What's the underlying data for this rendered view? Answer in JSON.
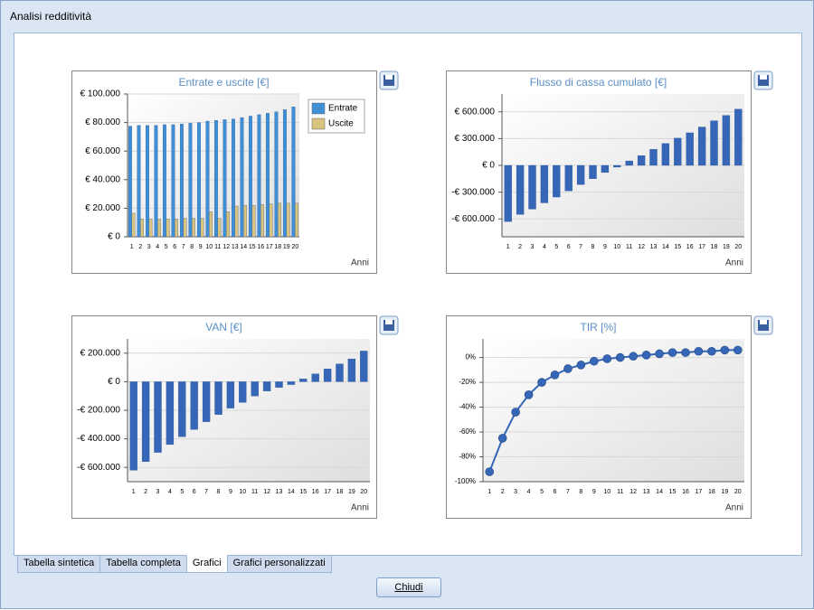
{
  "window": {
    "title": "Analisi redditività"
  },
  "tabs": [
    "Tabella sintetica",
    "Tabella completa",
    "Grafici",
    "Grafici personalizzati"
  ],
  "active_tab": 2,
  "button": "Chiudi",
  "chart_data": [
    {
      "type": "bar",
      "title": "Entrate e uscite [€]",
      "x_label": "Anni",
      "categories": [
        "1",
        "2",
        "3",
        "4",
        "5",
        "6",
        "7",
        "8",
        "9",
        "10",
        "11",
        "12",
        "13",
        "14",
        "15",
        "16",
        "17",
        "18",
        "19",
        "20"
      ],
      "series": [
        {
          "name": "Entrate",
          "color": "#3f8fd6",
          "values": [
            77500,
            78000,
            78000,
            78000,
            78500,
            78500,
            79000,
            79500,
            80000,
            81000,
            81500,
            82000,
            82500,
            83500,
            84500,
            85500,
            86500,
            87500,
            89000,
            91000
          ]
        },
        {
          "name": "Uscite",
          "color": "#d9c47e",
          "values": [
            16500,
            12500,
            12500,
            12500,
            12500,
            12500,
            13000,
            13000,
            13000,
            17500,
            13000,
            17500,
            21500,
            22000,
            22000,
            22500,
            23000,
            23500,
            23500,
            23500
          ]
        }
      ],
      "ylim": [
        0,
        100000
      ],
      "yticks": [
        {
          "value": 0,
          "label": "€ 0"
        },
        {
          "value": 20000,
          "label": "€ 20.000"
        },
        {
          "value": 40000,
          "label": "€ 40.000"
        },
        {
          "value": 60000,
          "label": "€ 60.000"
        },
        {
          "value": 80000,
          "label": "€ 80.000"
        },
        {
          "value": 100000,
          "label": "€ 100.000"
        }
      ],
      "grid": true,
      "legend": "top-right"
    },
    {
      "type": "bar",
      "title": "Flusso di cassa cumulato [€]",
      "x_label": "Anni",
      "categories": [
        "1",
        "2",
        "3",
        "4",
        "5",
        "6",
        "7",
        "8",
        "9",
        "10",
        "11",
        "12",
        "13",
        "14",
        "15",
        "16",
        "17",
        "18",
        "19",
        "20"
      ],
      "values": [
        -630000,
        -550000,
        -490000,
        -420000,
        -355000,
        -285000,
        -215000,
        -150000,
        -80000,
        -20000,
        50000,
        110000,
        180000,
        245000,
        305000,
        365000,
        430000,
        500000,
        560000,
        630000
      ],
      "color": "#3566b8",
      "ylim": [
        -800000,
        800000
      ],
      "yticks": [
        {
          "value": -600000,
          "label": "-€ 600.000"
        },
        {
          "value": -300000,
          "label": "-€ 300.000"
        },
        {
          "value": 0,
          "label": "€ 0"
        },
        {
          "value": 300000,
          "label": "€ 300.000"
        },
        {
          "value": 600000,
          "label": "€ 600.000"
        }
      ],
      "grid": true
    },
    {
      "type": "bar",
      "title": "VAN [€]",
      "x_label": "Anni",
      "categories": [
        "1",
        "2",
        "3",
        "4",
        "5",
        "6",
        "7",
        "8",
        "9",
        "10",
        "11",
        "12",
        "13",
        "14",
        "15",
        "16",
        "17",
        "18",
        "19",
        "20"
      ],
      "values": [
        -620000,
        -560000,
        -495000,
        -440000,
        -385000,
        -335000,
        -280000,
        -230000,
        -185000,
        -145000,
        -100000,
        -65000,
        -40000,
        -20000,
        20000,
        55000,
        90000,
        125000,
        160000,
        215000
      ],
      "color": "#3566b8",
      "ylim": [
        -700000,
        300000
      ],
      "yticks": [
        {
          "value": -600000,
          "label": "-€ 600.000"
        },
        {
          "value": -400000,
          "label": "-€ 400.000"
        },
        {
          "value": -200000,
          "label": "-€ 200.000"
        },
        {
          "value": 0,
          "label": "€ 0"
        },
        {
          "value": 200000,
          "label": "€ 200.000"
        }
      ],
      "grid": true
    },
    {
      "type": "line",
      "title": "TIR [%]",
      "x_label": "Anni",
      "categories": [
        "1",
        "2",
        "3",
        "4",
        "5",
        "6",
        "7",
        "8",
        "9",
        "10",
        "11",
        "12",
        "13",
        "14",
        "15",
        "16",
        "17",
        "18",
        "19",
        "20"
      ],
      "values": [
        -92,
        -65,
        -44,
        -30,
        -20,
        -14,
        -9,
        -6,
        -3,
        -1,
        0,
        1,
        2,
        3,
        4,
        4,
        5,
        5,
        6,
        6
      ],
      "color": "#3566b8",
      "ylim": [
        -100,
        15
      ],
      "yticks": [
        {
          "value": -100,
          "label": "-100%"
        },
        {
          "value": -80,
          "label": "-80%"
        },
        {
          "value": -60,
          "label": "-60%"
        },
        {
          "value": -40,
          "label": "-40%"
        },
        {
          "value": -20,
          "label": "-20%"
        },
        {
          "value": 0,
          "label": "0%"
        }
      ],
      "grid": true
    }
  ]
}
